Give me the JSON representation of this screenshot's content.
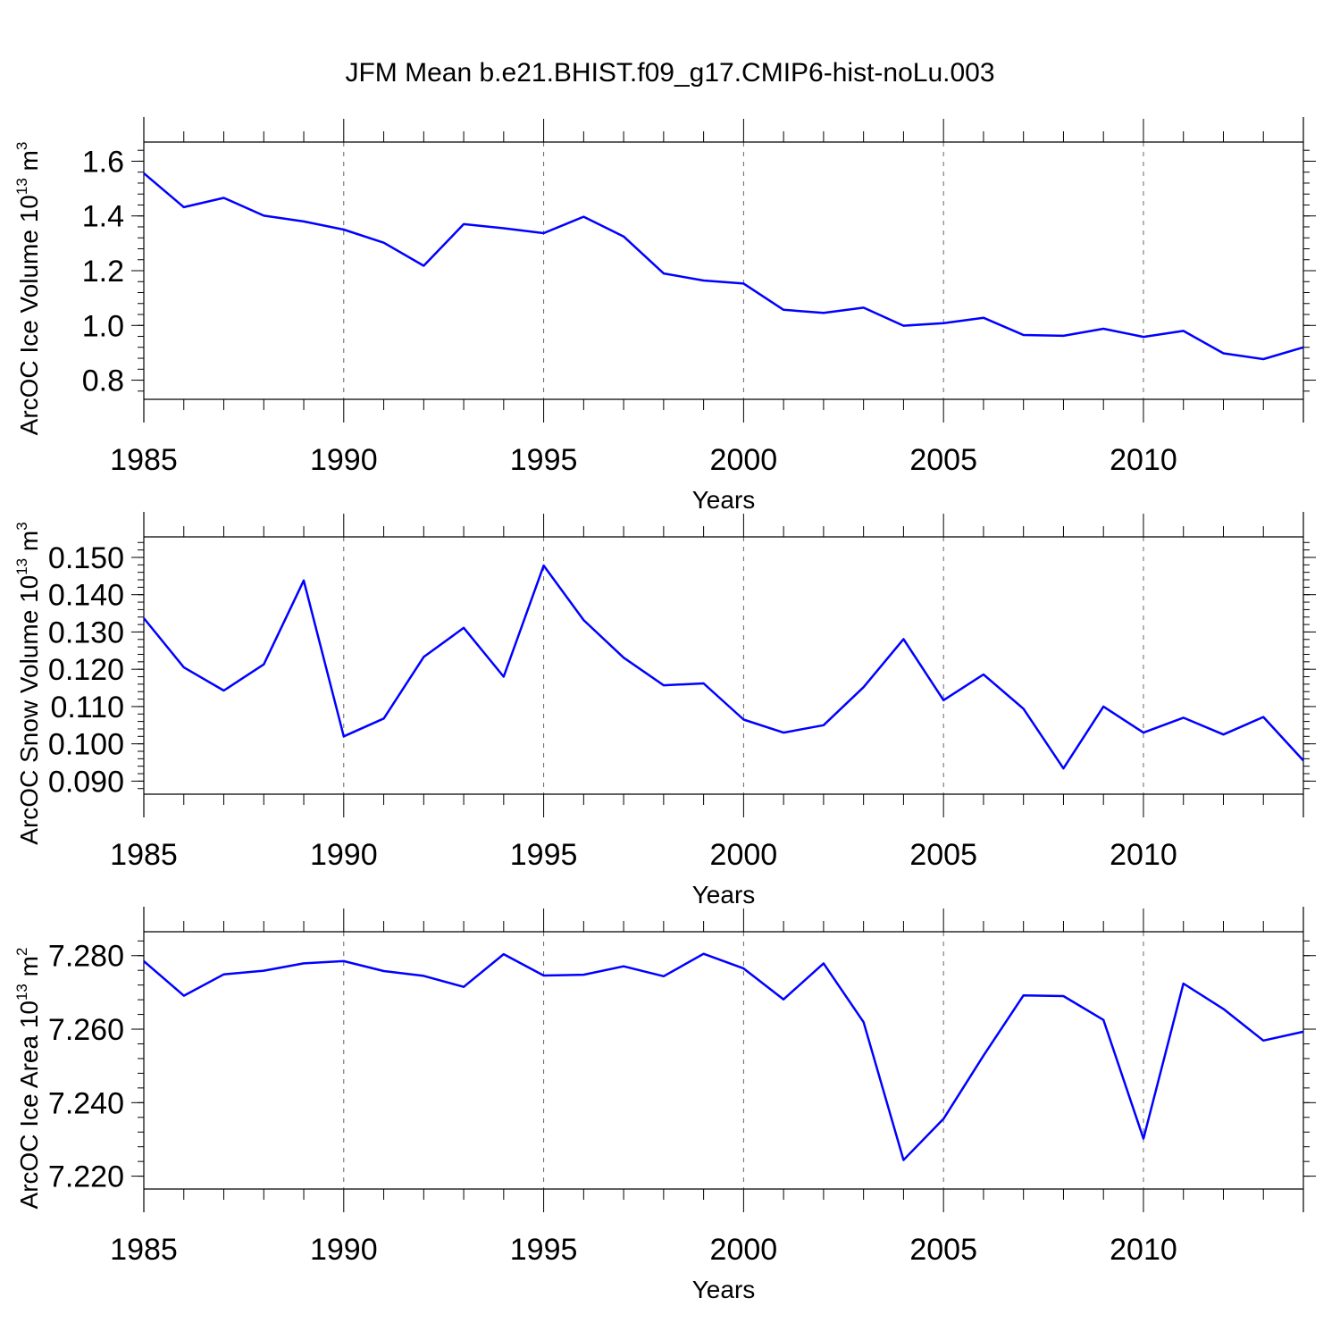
{
  "title": "JFM Mean b.e21.BHIST.f09_g17.CMIP6-hist-noLu.003",
  "series_color": "#0000ff",
  "chart_data": [
    {
      "type": "line",
      "id": "volume",
      "ylabel": "ArcOC Ice Volume 10",
      "ylabel_exp": "13",
      "ylabel_unit": "m",
      "ylabel_unit_exp": "3",
      "xlabel": "Years",
      "xlim": [
        1985,
        2014
      ],
      "ylim": [
        0.73,
        1.67
      ],
      "grid": "dashed vertical lines at labeled years",
      "x_ticks": [
        "1985",
        "1990",
        "1995",
        "2000",
        "2005",
        "2010"
      ],
      "y_ticks": [
        "0.8",
        "1.0",
        "1.2",
        "1.4",
        "1.6"
      ],
      "x": [
        1985,
        1986,
        1987,
        1988,
        1989,
        1990,
        1991,
        1992,
        1993,
        1994,
        1995,
        1996,
        1997,
        1998,
        1999,
        2000,
        2001,
        2002,
        2003,
        2004,
        2005,
        2006,
        2007,
        2008,
        2009,
        2010,
        2011,
        2012,
        2013,
        2014
      ],
      "values": [
        1.556,
        1.432,
        1.466,
        1.401,
        1.38,
        1.35,
        1.302,
        1.218,
        1.37,
        1.355,
        1.337,
        1.397,
        1.325,
        1.19,
        1.164,
        1.153,
        1.057,
        1.046,
        1.065,
        0.999,
        1.008,
        1.028,
        0.965,
        0.962,
        0.988,
        0.958,
        0.98,
        0.898,
        0.877,
        0.92
      ]
    },
    {
      "type": "line",
      "id": "snow",
      "ylabel": "ArcOC Snow Volume 10",
      "ylabel_exp": "13",
      "ylabel_unit": "m",
      "ylabel_unit_exp": "3",
      "xlabel": "Years",
      "xlim": [
        1985,
        2014
      ],
      "ylim": [
        0.0865,
        0.1555
      ],
      "grid": "dashed vertical lines at labeled years",
      "x_ticks": [
        "1985",
        "1990",
        "1995",
        "2000",
        "2005",
        "2010"
      ],
      "y_ticks": [
        "0.090",
        "0.100",
        "0.110",
        "0.120",
        "0.130",
        "0.140",
        "0.150"
      ],
      "x": [
        1985,
        1986,
        1987,
        1988,
        1989,
        1990,
        1991,
        1992,
        1993,
        1994,
        1995,
        1996,
        1997,
        1998,
        1999,
        2000,
        2001,
        2002,
        2003,
        2004,
        2005,
        2006,
        2007,
        2008,
        2009,
        2010,
        2011,
        2012,
        2013,
        2014
      ],
      "values": [
        0.1337,
        0.1205,
        0.1143,
        0.1213,
        0.1438,
        0.102,
        0.1068,
        0.1233,
        0.1311,
        0.118,
        0.1478,
        0.1332,
        0.1231,
        0.1157,
        0.1162,
        0.1065,
        0.103,
        0.105,
        0.1152,
        0.1281,
        0.1117,
        0.1186,
        0.1094,
        0.0934,
        0.11,
        0.103,
        0.107,
        0.1025,
        0.1072,
        0.0955
      ]
    },
    {
      "type": "line",
      "id": "area",
      "ylabel": "ArcOC Ice Area 10",
      "ylabel_exp": "13",
      "ylabel_unit": "m",
      "ylabel_unit_exp": "2",
      "xlabel": "Years",
      "xlim": [
        1985,
        2014
      ],
      "ylim": [
        7.2165,
        7.2865
      ],
      "grid": "dashed vertical lines at labeled years",
      "x_ticks": [
        "1985",
        "1990",
        "1995",
        "2000",
        "2005",
        "2010"
      ],
      "y_ticks": [
        "7.220",
        "7.240",
        "7.260",
        "7.280"
      ],
      "x": [
        1985,
        1986,
        1987,
        1988,
        1989,
        1990,
        1991,
        1992,
        1993,
        1994,
        1995,
        1996,
        1997,
        1998,
        1999,
        2000,
        2001,
        2002,
        2003,
        2004,
        2005,
        2006,
        2007,
        2008,
        2009,
        2010,
        2011,
        2012,
        2013,
        2014
      ],
      "values": [
        7.2785,
        7.2691,
        7.2749,
        7.2759,
        7.2779,
        7.2785,
        7.2758,
        7.2745,
        7.2715,
        7.2804,
        7.2746,
        7.2748,
        7.2771,
        7.2744,
        7.2805,
        7.2765,
        7.2681,
        7.2779,
        7.2619,
        7.2244,
        7.2356,
        7.2528,
        7.2692,
        7.269,
        7.2625,
        7.2302,
        7.2724,
        7.2655,
        7.2569,
        7.2593
      ]
    }
  ]
}
